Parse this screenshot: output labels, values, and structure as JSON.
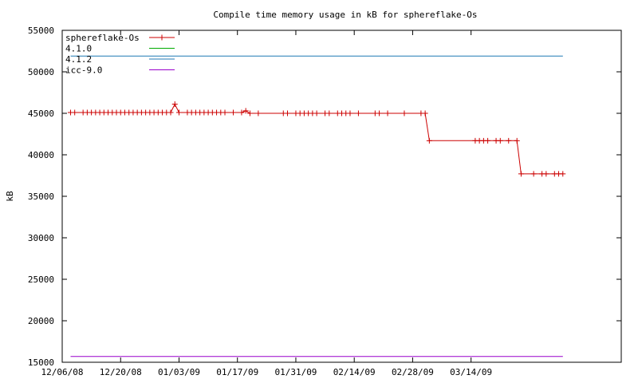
{
  "chart_data": {
    "type": "line",
    "title": "Compile time memory usage in kB for sphereflake-Os",
    "xlabel": "",
    "ylabel": "kB",
    "ylim": [
      15000,
      55000
    ],
    "xlim": [
      "12/06/08",
      "04/19/09"
    ],
    "yticks": [
      15000,
      20000,
      25000,
      30000,
      35000,
      40000,
      45000,
      50000,
      55000
    ],
    "xticks": [
      "12/06/08",
      "12/20/08",
      "01/03/09",
      "01/17/09",
      "01/31/09",
      "02/14/09",
      "02/28/09",
      "03/14/09"
    ],
    "grid": false,
    "legend_position": "top-left",
    "series": [
      {
        "name": "sphereflake-Os",
        "color": "#cc0000",
        "markers": true,
        "points": [
          [
            "12/08/08",
            45100
          ],
          [
            "12/09/08",
            45100
          ],
          [
            "12/11/08",
            45100
          ],
          [
            "12/12/08",
            45100
          ],
          [
            "12/13/08",
            45100
          ],
          [
            "12/14/08",
            45100
          ],
          [
            "12/15/08",
            45100
          ],
          [
            "12/16/08",
            45100
          ],
          [
            "12/17/08",
            45100
          ],
          [
            "12/18/08",
            45100
          ],
          [
            "12/19/08",
            45100
          ],
          [
            "12/20/08",
            45100
          ],
          [
            "12/21/08",
            45100
          ],
          [
            "12/22/08",
            45100
          ],
          [
            "12/23/08",
            45100
          ],
          [
            "12/24/08",
            45100
          ],
          [
            "12/25/08",
            45100
          ],
          [
            "12/26/08",
            45100
          ],
          [
            "12/27/08",
            45100
          ],
          [
            "12/28/08",
            45100
          ],
          [
            "12/29/08",
            45100
          ],
          [
            "12/30/08",
            45100
          ],
          [
            "12/31/08",
            45100
          ],
          [
            "01/01/09",
            45100
          ],
          [
            "01/02/09",
            46100
          ],
          [
            "01/03/09",
            45100
          ],
          [
            "01/05/09",
            45100
          ],
          [
            "01/06/09",
            45100
          ],
          [
            "01/07/09",
            45100
          ],
          [
            "01/08/09",
            45100
          ],
          [
            "01/09/09",
            45100
          ],
          [
            "01/10/09",
            45100
          ],
          [
            "01/11/09",
            45100
          ],
          [
            "01/12/09",
            45100
          ],
          [
            "01/13/09",
            45100
          ],
          [
            "01/14/09",
            45100
          ],
          [
            "01/16/09",
            45100
          ],
          [
            "01/18/09",
            45100
          ],
          [
            "01/19/09",
            45300
          ],
          [
            "01/20/09",
            45000
          ],
          [
            "01/22/09",
            45000
          ],
          [
            "01/28/09",
            45000
          ],
          [
            "01/29/09",
            45000
          ],
          [
            "01/31/09",
            45000
          ],
          [
            "02/01/09",
            45000
          ],
          [
            "02/02/09",
            45000
          ],
          [
            "02/03/09",
            45000
          ],
          [
            "02/04/09",
            45000
          ],
          [
            "02/05/09",
            45000
          ],
          [
            "02/07/09",
            45000
          ],
          [
            "02/08/09",
            45000
          ],
          [
            "02/10/09",
            45000
          ],
          [
            "02/11/09",
            45000
          ],
          [
            "02/12/09",
            45000
          ],
          [
            "02/13/09",
            45000
          ],
          [
            "02/15/09",
            45000
          ],
          [
            "02/19/09",
            45000
          ],
          [
            "02/20/09",
            45000
          ],
          [
            "02/22/09",
            45000
          ],
          [
            "02/26/09",
            45000
          ],
          [
            "03/02/09",
            45000
          ],
          [
            "03/03/09",
            45000
          ],
          [
            "03/04/09",
            41700
          ],
          [
            "03/15/09",
            41700
          ],
          [
            "03/16/09",
            41700
          ],
          [
            "03/17/09",
            41700
          ],
          [
            "03/18/09",
            41700
          ],
          [
            "03/20/09",
            41700
          ],
          [
            "03/21/09",
            41700
          ],
          [
            "03/23/09",
            41700
          ],
          [
            "03/25/09",
            41700
          ],
          [
            "03/26/09",
            37700
          ],
          [
            "03/29/09",
            37700
          ],
          [
            "03/31/09",
            37700
          ],
          [
            "04/01/09",
            37700
          ],
          [
            "04/03/09",
            37700
          ],
          [
            "04/04/09",
            37700
          ],
          [
            "04/05/09",
            37700
          ]
        ]
      },
      {
        "name": "4.1.0",
        "color": "#00aa00",
        "markers": false,
        "points": []
      },
      {
        "name": "4.1.2",
        "color": "#1f78b4",
        "markers": false,
        "points": [
          [
            "12/08/08",
            51900
          ],
          [
            "04/05/09",
            51900
          ]
        ]
      },
      {
        "name": "icc-9.0",
        "color": "#9900cc",
        "markers": false,
        "points": [
          [
            "12/08/08",
            15700
          ],
          [
            "04/05/09",
            15700
          ]
        ]
      }
    ]
  }
}
